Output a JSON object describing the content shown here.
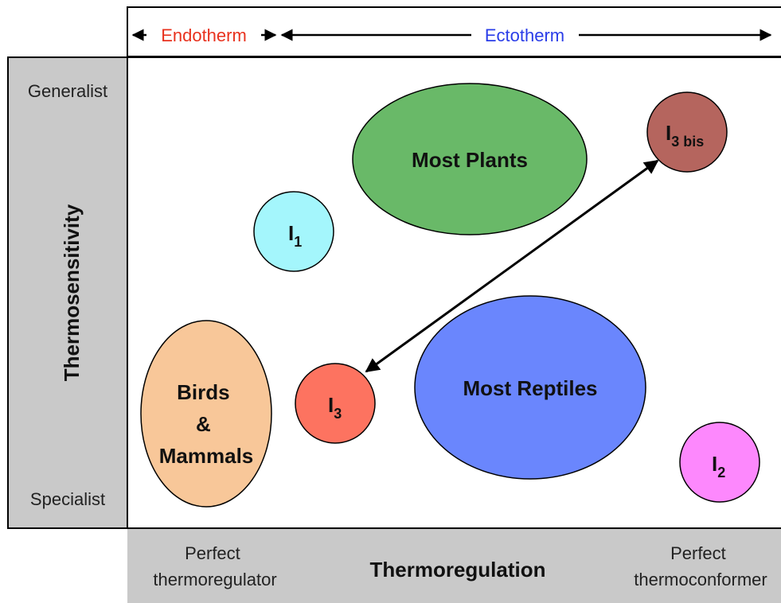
{
  "top_bar": {
    "left": "Endotherm",
    "right": "Ectotherm"
  },
  "y_axis": {
    "title": "Thermosensitivity",
    "top": "Generalist",
    "bottom": "Specialist"
  },
  "x_axis": {
    "title": "Thermoregulation",
    "left": [
      "Perfect",
      "thermoregulator"
    ],
    "right": [
      "Perfect",
      "thermoconformer"
    ]
  },
  "nodes": [
    {
      "lines": [
        "Most Plants"
      ]
    },
    {
      "label": "I",
      "subscript": "1"
    },
    {
      "label": "I",
      "subscript": "3 bis"
    },
    {
      "lines": [
        "Birds",
        "&",
        "Mammals"
      ]
    },
    {
      "label": "I",
      "subscript": "3"
    },
    {
      "lines": [
        "Most Reptiles"
      ]
    },
    {
      "label": "I",
      "subscript": "2"
    }
  ]
}
